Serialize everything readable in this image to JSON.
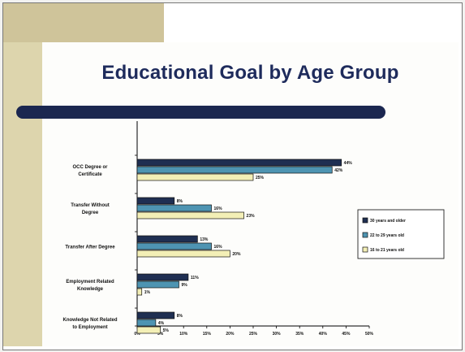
{
  "slide": {
    "title": "Educational Goal by Age Group"
  },
  "chart_data": {
    "type": "bar",
    "orientation": "horizontal",
    "title": "Educational Goal by Age Group",
    "categories": [
      [
        "OCC Degree or",
        "Certificate"
      ],
      [
        "Transfer Without",
        "Degree"
      ],
      [
        "Transfer After Degree"
      ],
      [
        "Employment Related",
        "Knowledge"
      ],
      [
        "Knowledge Not Related",
        "to Employment"
      ]
    ],
    "series": [
      {
        "name": "30 years and older",
        "color": "#1f2f52",
        "values": [
          44,
          8,
          13,
          11,
          8
        ],
        "labels": [
          "44%",
          "8%",
          "13%",
          "11%",
          "8%"
        ]
      },
      {
        "name": "22 to 29 years old",
        "color": "#4e94b2",
        "values": [
          42,
          16,
          16,
          9,
          4
        ],
        "labels": [
          "42%",
          "16%",
          "16%",
          "9%",
          "4%"
        ]
      },
      {
        "name": "16 to 21 years old",
        "color": "#f3efb6",
        "values": [
          25,
          23,
          20,
          1,
          5
        ],
        "labels": [
          "25%",
          "23%",
          "20%",
          "1%",
          "5%"
        ]
      }
    ],
    "xlim": [
      0,
      50
    ],
    "ticks": [
      "0%",
      "5%",
      "10%",
      "15%",
      "20%",
      "25%",
      "30%",
      "35%",
      "40%",
      "45%",
      "50%"
    ],
    "grid": false,
    "legend": "right"
  }
}
